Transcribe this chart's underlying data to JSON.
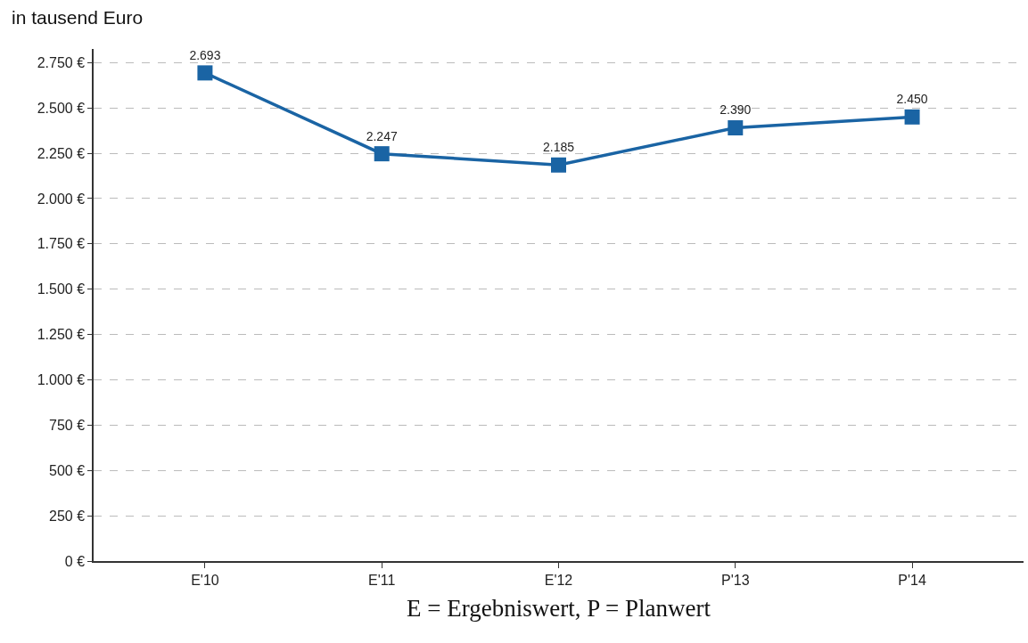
{
  "chart_data": {
    "type": "line",
    "ylabel": "in tausend Euro",
    "xlabel": "E = Ergebniswert, P = Planwert",
    "categories": [
      "E'10",
      "E'11",
      "E'12",
      "P'13",
      "P'14"
    ],
    "series": [
      {
        "color": "#1a64a4",
        "values": [
          2693,
          2247,
          2185,
          2390,
          2450
        ],
        "value_labels": [
          "2.693",
          "2.247",
          "2.185",
          "2.390",
          "2.450"
        ]
      }
    ],
    "ylim": [
      0,
      2825
    ],
    "yticks": [
      {
        "value": 0,
        "label": "0 €"
      },
      {
        "value": 250,
        "label": "250 €"
      },
      {
        "value": 500,
        "label": "500 €"
      },
      {
        "value": 750,
        "label": "750 €"
      },
      {
        "value": 1000,
        "label": "1.000 €"
      },
      {
        "value": 1250,
        "label": "1.250 €"
      },
      {
        "value": 1500,
        "label": "1.500 €"
      },
      {
        "value": 1750,
        "label": "1.750 €"
      },
      {
        "value": 2000,
        "label": "2.000 €"
      },
      {
        "value": 2250,
        "label": "2.250 €"
      },
      {
        "value": 2500,
        "label": "2.500 €"
      },
      {
        "value": 2750,
        "label": "2.750 €"
      }
    ],
    "grid": "y",
    "marker": "square",
    "line_style": "solid"
  }
}
